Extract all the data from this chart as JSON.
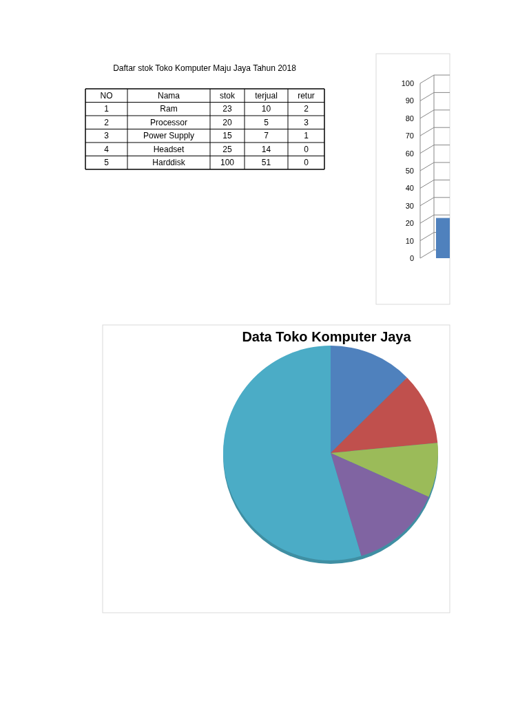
{
  "chart_data": [
    {
      "type": "other",
      "title": "Daftar stok Toko Komputer Maju Jaya Tahun 2018",
      "ylabel": "Nama",
      "categories": [
        "Ram",
        "Processor",
        "Power Supply",
        "Headset",
        "Harddisk"
      ],
      "data_labels": true,
      "series": [
        {
          "name": "NO",
          "values": [
            1,
            2,
            3,
            4,
            5
          ]
        },
        {
          "name": "stok",
          "values": [
            23,
            20,
            15,
            25,
            100
          ]
        },
        {
          "name": "terjual",
          "values": [
            10,
            5,
            7,
            14,
            51
          ]
        },
        {
          "name": "retur",
          "values": [
            2,
            3,
            1,
            0,
            0
          ]
        }
      ]
    },
    {
      "type": "bar",
      "categories": [
        null
      ],
      "values": [
        23
      ],
      "color": "#4f81bd",
      "ylim": [
        0,
        100
      ],
      "yticks": [
        0,
        10,
        20,
        30,
        40,
        50,
        60,
        70,
        80,
        90,
        100
      ],
      "grid": "y"
    },
    {
      "type": "pie",
      "title": "Data Toko Komputer Jaya",
      "categories": [
        null,
        null,
        null,
        null,
        null
      ],
      "values": [
        12.6,
        10.9,
        8.2,
        13.7,
        54.6
      ],
      "colors": [
        "#4f81bd",
        "#c0504d",
        "#9bbb59",
        "#8064a2",
        "#4bacc6"
      ]
    }
  ]
}
